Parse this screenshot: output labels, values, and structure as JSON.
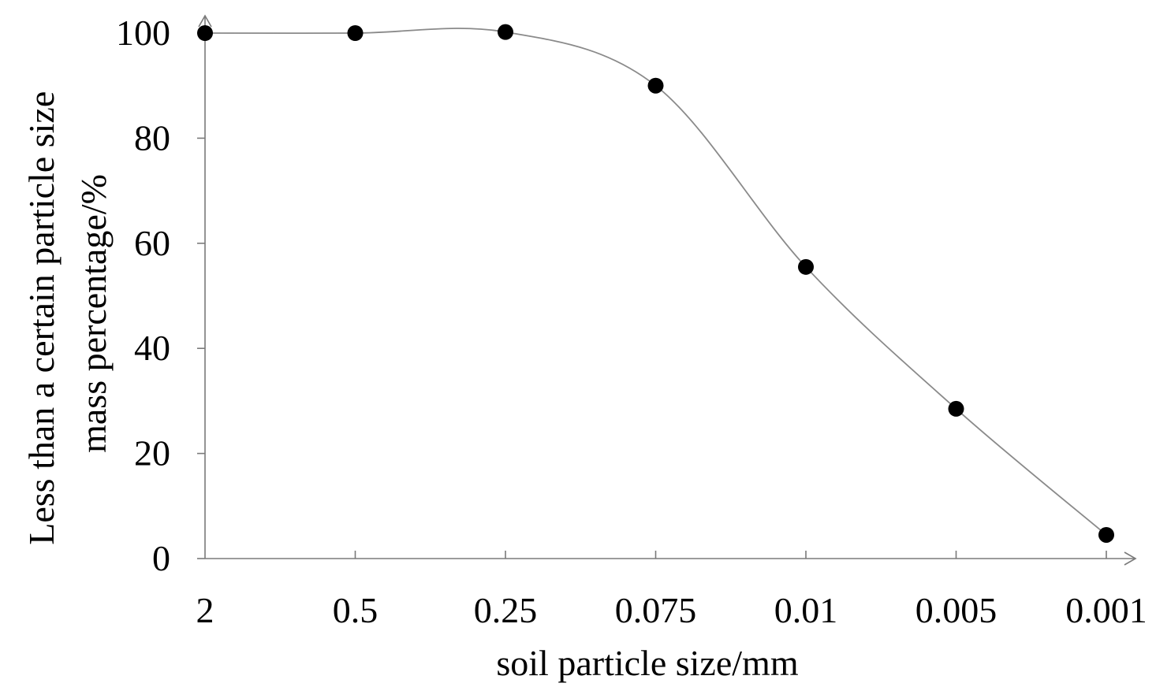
{
  "chart_data": {
    "type": "line",
    "title": "",
    "xlabel": "soil particle size/mm",
    "ylabel_lines": [
      "Less than a certain particle size",
      "mass percentage/%"
    ],
    "categories": [
      "2",
      "0.5",
      "0.25",
      "0.075",
      "0.01",
      "0.005",
      "0.001"
    ],
    "series": [
      {
        "values": [
          100,
          100,
          100.2,
          90,
          55.5,
          28.5,
          4.5
        ]
      }
    ],
    "y_ticks": [
      0,
      20,
      40,
      60,
      80,
      100
    ],
    "ylim": [
      0,
      100
    ],
    "markers": "filled-circle",
    "line": "smooth",
    "grid": false,
    "legend": "none",
    "colors": {
      "marker": "#000000",
      "line": "#8a8a8a",
      "axis": "#7a7a7a",
      "text": "#000000"
    }
  }
}
